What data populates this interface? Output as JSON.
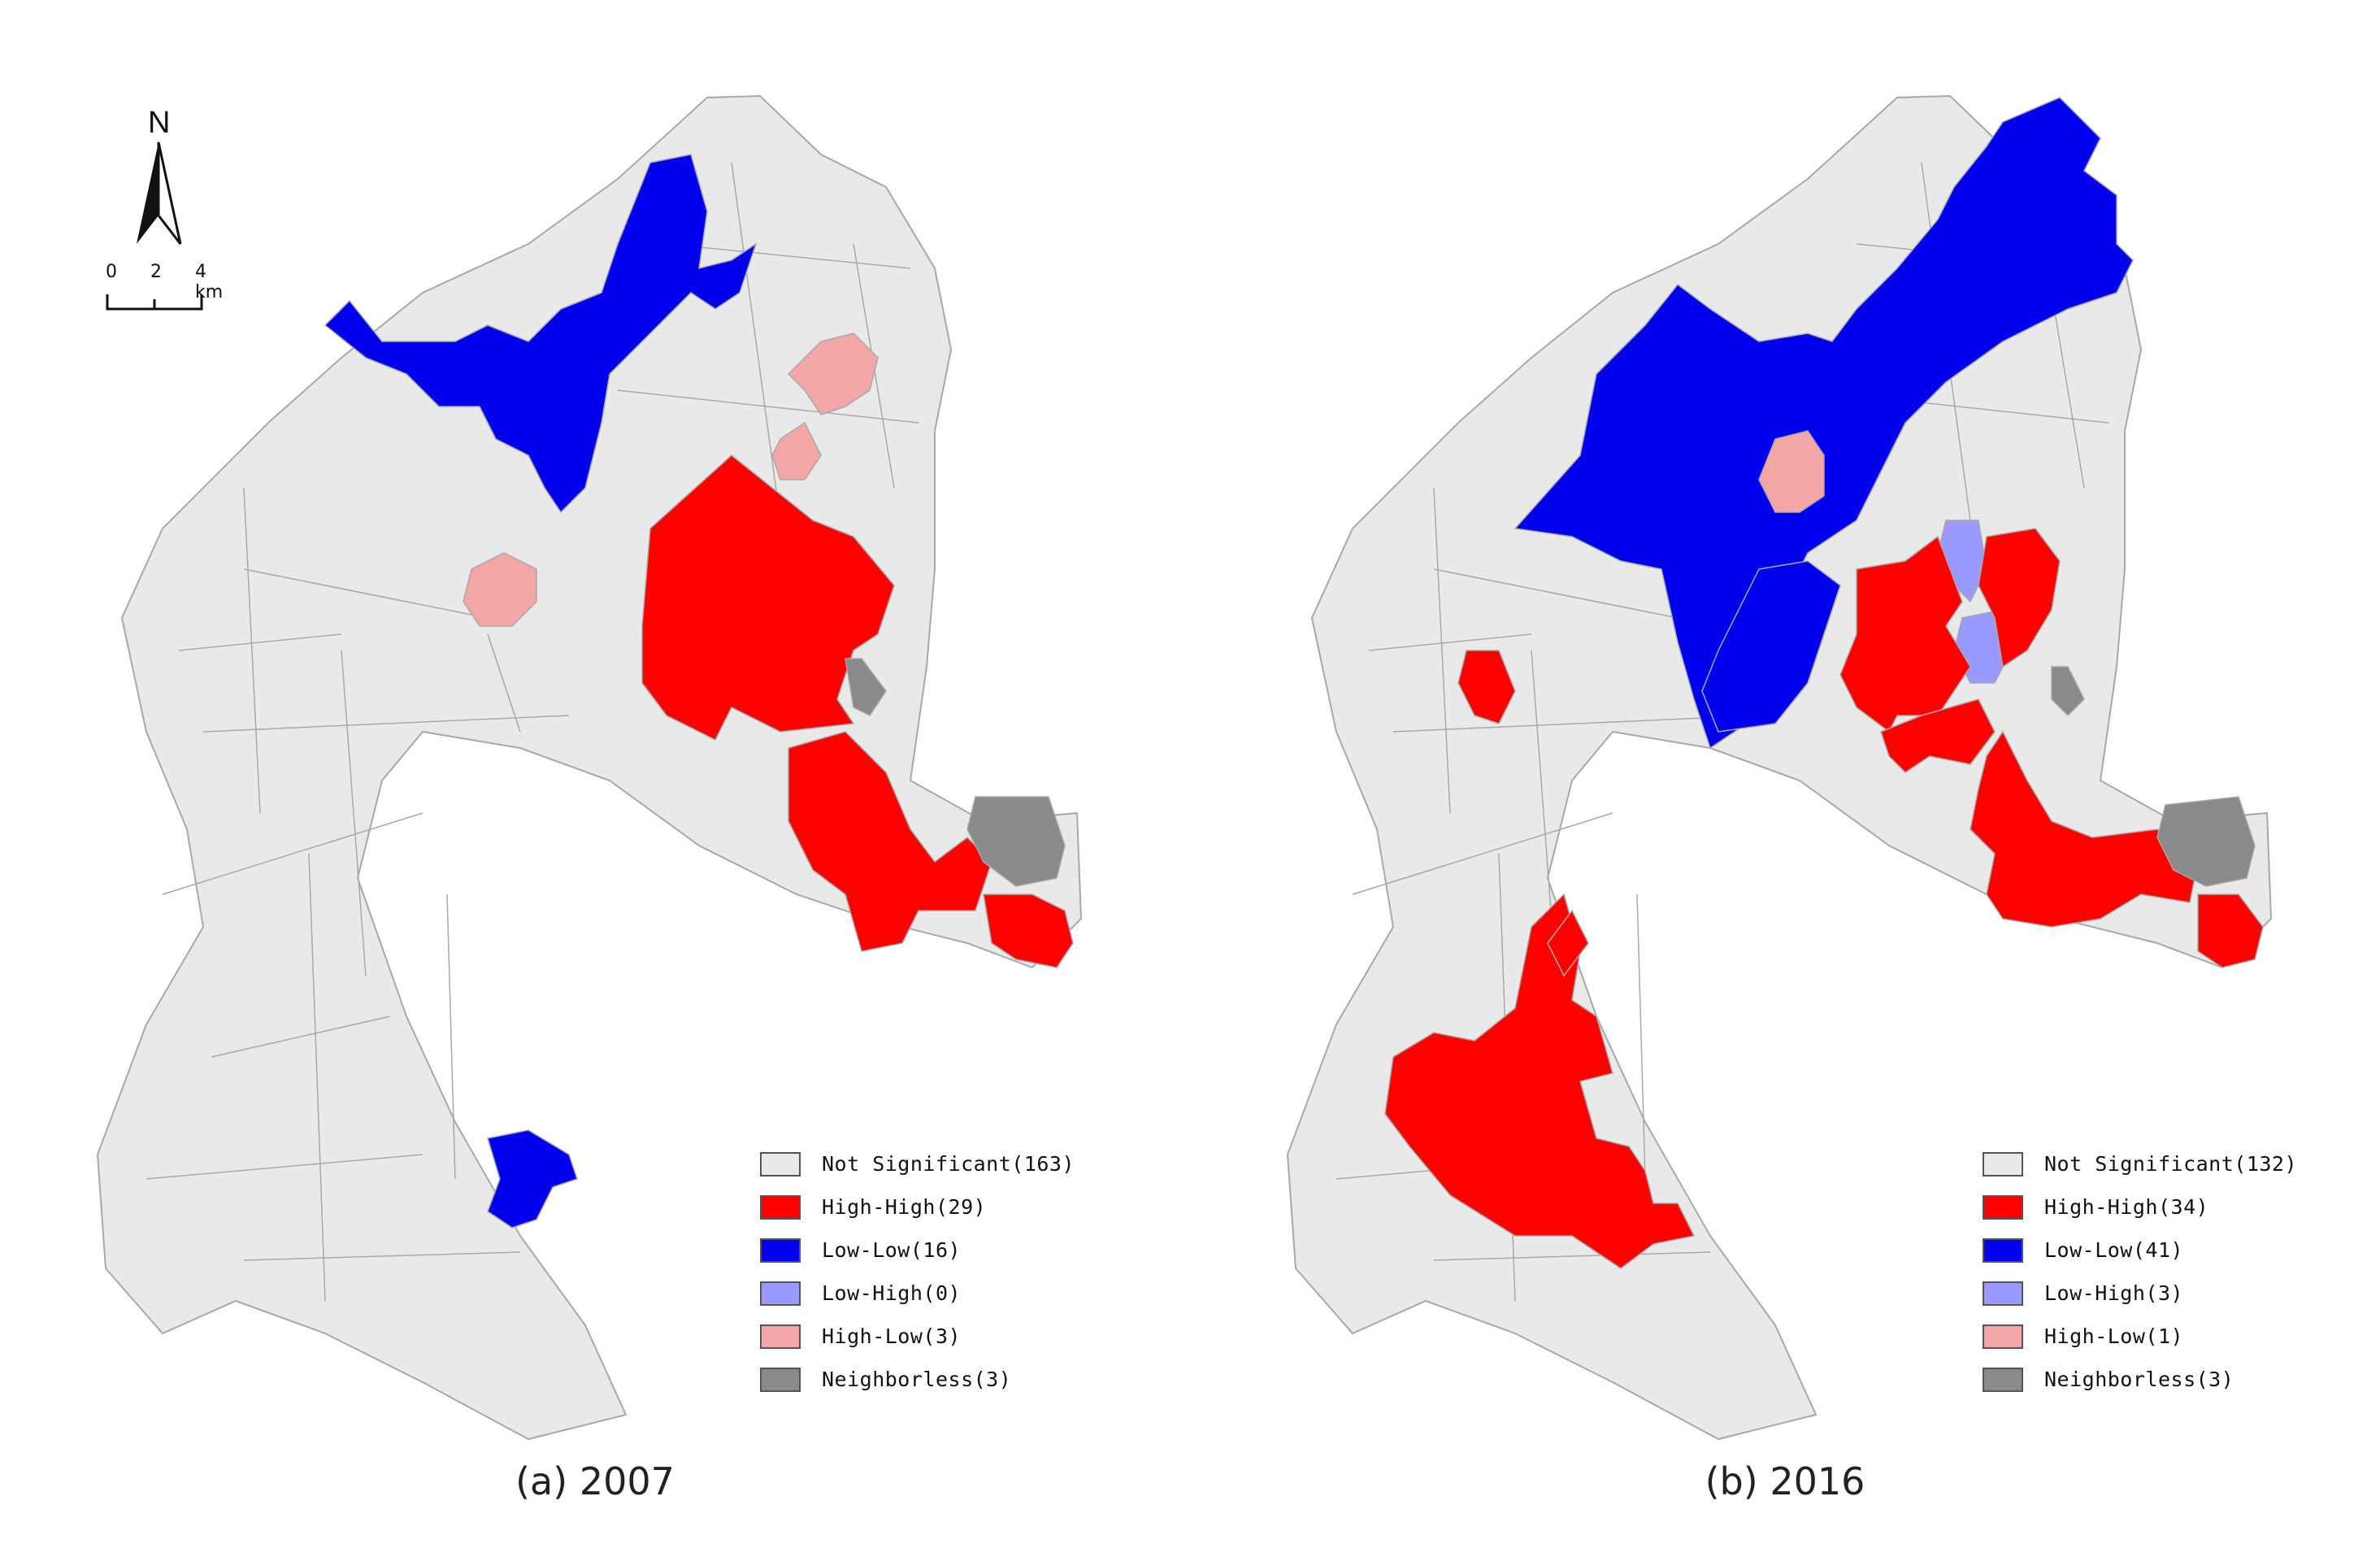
{
  "colors": {
    "not_significant": "#e9e9e9",
    "high_high": "#ff0000",
    "low_low": "#0000ee",
    "low_high": "#9999ff",
    "high_low": "#f4a6a6",
    "neighborless": "#8a8a8a",
    "boundary": "#a8a8a8"
  },
  "north_arrow": {
    "letter": "N"
  },
  "scale_bar": {
    "ticks": [
      "0",
      "2",
      "4 km"
    ]
  },
  "panels": [
    {
      "caption": "(a) 2007",
      "legend": [
        {
          "label": "Not Significant(163)",
          "class": "not_significant"
        },
        {
          "label": "High-High(29)",
          "class": "high_high"
        },
        {
          "label": "Low-Low(16)",
          "class": "low_low"
        },
        {
          "label": "Low-High(0)",
          "class": "low_high"
        },
        {
          "label": "High-Low(3)",
          "class": "high_low"
        },
        {
          "label": "Neighborless(3)",
          "class": "neighborless"
        }
      ]
    },
    {
      "caption": "(b) 2016",
      "legend": [
        {
          "label": "Not Significant(132)",
          "class": "not_significant"
        },
        {
          "label": "High-High(34)",
          "class": "high_high"
        },
        {
          "label": "Low-Low(41)",
          "class": "low_low"
        },
        {
          "label": "Low-High(3)",
          "class": "low_high"
        },
        {
          "label": "High-Low(1)",
          "class": "high_low"
        },
        {
          "label": "Neighborless(3)",
          "class": "neighborless"
        }
      ]
    }
  ]
}
